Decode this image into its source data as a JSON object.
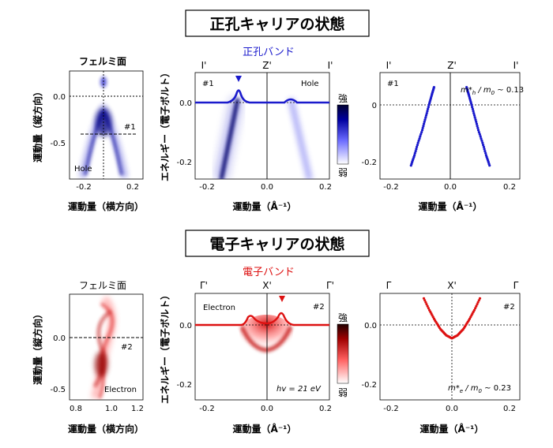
{
  "sections": {
    "hole": {
      "title": "正孔キャリアの状態",
      "band_label": "正孔バンド",
      "band_color": "#1a1acc",
      "fermi": {
        "title": "フェルミ面",
        "xlabel": "運動量（横方向）",
        "ylabel": "運動量（縦方向）",
        "xticks": [
          "-0.2",
          "0.2"
        ],
        "yticks": [
          "0.0",
          "-0.5"
        ],
        "cut_label": "#1",
        "carrier_label": "Hole"
      },
      "arpes": {
        "ylabel": "エネルギー（電子ボルト）",
        "xlabel": "運動量（Å⁻¹）",
        "top_labels": [
          "I'",
          "Z'",
          "I'"
        ],
        "cut_label": "#1",
        "carrier_label": "Hole",
        "xticks": [
          "-0.2",
          "0.0",
          "0.2"
        ],
        "yticks": [
          "0.0",
          "-0.2"
        ],
        "colorbar_high": "強",
        "colorbar_low": "弱"
      },
      "dispersion": {
        "xlabel": "運動量（Å⁻¹）",
        "top_labels": [
          "I'",
          "Z'",
          "I'"
        ],
        "cut_label": "#1",
        "mass_sym": "m*",
        "mass_sub": "h",
        "mass_rest": " / m",
        "mass_zero": "0",
        "mass_value": " ~ 0.13",
        "xticks": [
          "-0.2",
          "0.0",
          "0.2"
        ],
        "yticks": [
          "0",
          "-0.2"
        ]
      }
    },
    "electron": {
      "title": "電子キャリアの状態",
      "band_label": "電子バンド",
      "band_color": "#dd1111",
      "fermi": {
        "title": "フェルミ面",
        "xlabel": "運動量（横方向）",
        "ylabel": "運動量（縦方向）",
        "xticks": [
          "0.8",
          "1.0",
          "1.2"
        ],
        "yticks": [
          "0.0",
          "-0.5"
        ],
        "cut_label": "#2",
        "carrier_label": "Electron"
      },
      "arpes": {
        "ylabel": "エネルギー（電子ボルト）",
        "xlabel": "運動量（Å⁻¹）",
        "top_labels": [
          "Γ'",
          "X'",
          "Γ'"
        ],
        "cut_label": "#2",
        "carrier_label": "Electron",
        "photon_label": "hv = 21 eV",
        "xticks": [
          "-0.2",
          "0.0",
          "0.2"
        ],
        "yticks": [
          "0.0",
          "-0.2"
        ],
        "colorbar_high": "強",
        "colorbar_low": "弱"
      },
      "dispersion": {
        "xlabel": "運動量（Å⁻¹）",
        "top_labels": [
          "Γ",
          "X'",
          "Γ"
        ],
        "cut_label": "#2",
        "mass_sym": "m*",
        "mass_sub": "e",
        "mass_rest": " / m",
        "mass_zero": "0",
        "mass_value": " ~ 0.23",
        "xticks": [
          "-0.2",
          "0.0",
          "0.2"
        ],
        "yticks": [
          "0.0",
          "-0.2"
        ]
      }
    }
  },
  "chart_data": [
    {
      "type": "scatter",
      "panel": "hole-dispersion",
      "xlim": [
        -0.22,
        0.22
      ],
      "ylim": [
        -0.24,
        0.08
      ],
      "series": [
        {
          "points": [
            [
              -0.14,
              -0.24
            ],
            [
              -0.128,
              -0.2
            ],
            [
              -0.115,
              -0.15
            ],
            [
              -0.1,
              -0.1
            ],
            [
              -0.088,
              -0.05
            ],
            [
              -0.076,
              0.0
            ],
            [
              -0.066,
              0.04
            ],
            [
              -0.058,
              0.07
            ]
          ]
        },
        {
          "points": [
            [
              0.14,
              -0.24
            ],
            [
              0.128,
              -0.2
            ],
            [
              0.115,
              -0.15
            ],
            [
              0.1,
              -0.1
            ],
            [
              0.088,
              -0.05
            ],
            [
              0.076,
              0.0
            ],
            [
              0.066,
              0.04
            ],
            [
              0.058,
              0.07
            ]
          ]
        }
      ],
      "mass_ratio": 0.13
    },
    {
      "type": "scatter",
      "panel": "electron-dispersion",
      "xlim": [
        -0.22,
        0.22
      ],
      "ylim": [
        -0.24,
        0.1
      ],
      "series": [
        {
          "points": [
            [
              -0.1,
              0.09
            ],
            [
              -0.08,
              0.05
            ],
            [
              -0.06,
              0.015
            ],
            [
              -0.04,
              -0.015
            ],
            [
              -0.02,
              -0.035
            ],
            [
              0.0,
              -0.045
            ],
            [
              0.02,
              -0.035
            ],
            [
              0.04,
              -0.015
            ],
            [
              0.06,
              0.015
            ],
            [
              0.08,
              0.05
            ],
            [
              0.1,
              0.09
            ]
          ]
        }
      ],
      "mass_ratio": 0.23
    }
  ]
}
